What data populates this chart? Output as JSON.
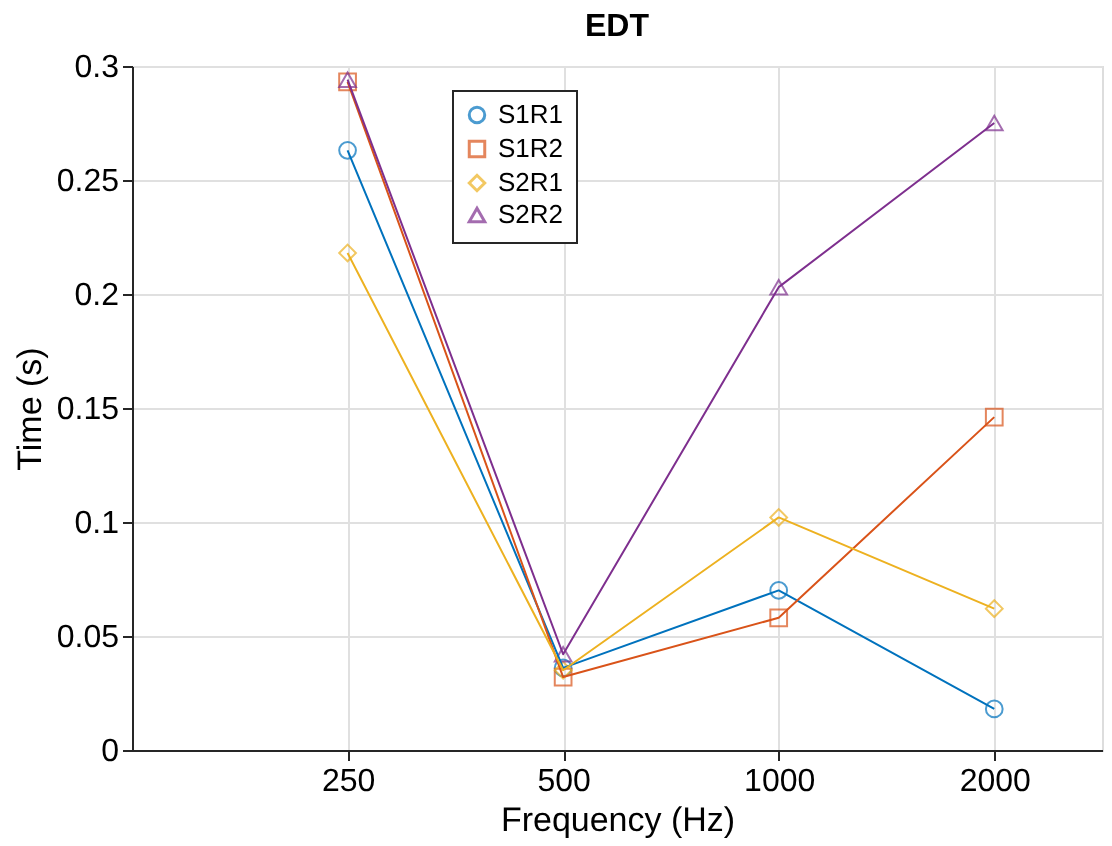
{
  "chart_data": {
    "type": "line",
    "title": "EDT",
    "xlabel": "Frequency (Hz)",
    "ylabel": "Time (s)",
    "x": [
      250,
      500,
      1000,
      2000
    ],
    "log": "x",
    "xlim": [
      125,
      2828
    ],
    "xticks": [
      250,
      500,
      1000,
      2000
    ],
    "ylim": [
      0,
      0.3
    ],
    "yticks": [
      0,
      0.05,
      0.1,
      0.15,
      0.2,
      0.25,
      0.3
    ],
    "grid": true,
    "legend": "top",
    "series": [
      {
        "name": "S1R1",
        "color": "#0072bd",
        "marker": "circle",
        "values": [
          0.263,
          0.036,
          0.07,
          0.018
        ]
      },
      {
        "name": "S1R2",
        "color": "#d95319",
        "marker": "square",
        "values": [
          0.293,
          0.032,
          0.058,
          0.146
        ]
      },
      {
        "name": "S2R1",
        "color": "#edb120",
        "marker": "diamond",
        "values": [
          0.218,
          0.035,
          0.102,
          0.062
        ]
      },
      {
        "name": "S2R2",
        "color": "#7e2f8e",
        "marker": "triangle",
        "values": [
          0.294,
          0.042,
          0.203,
          0.275
        ]
      }
    ]
  }
}
